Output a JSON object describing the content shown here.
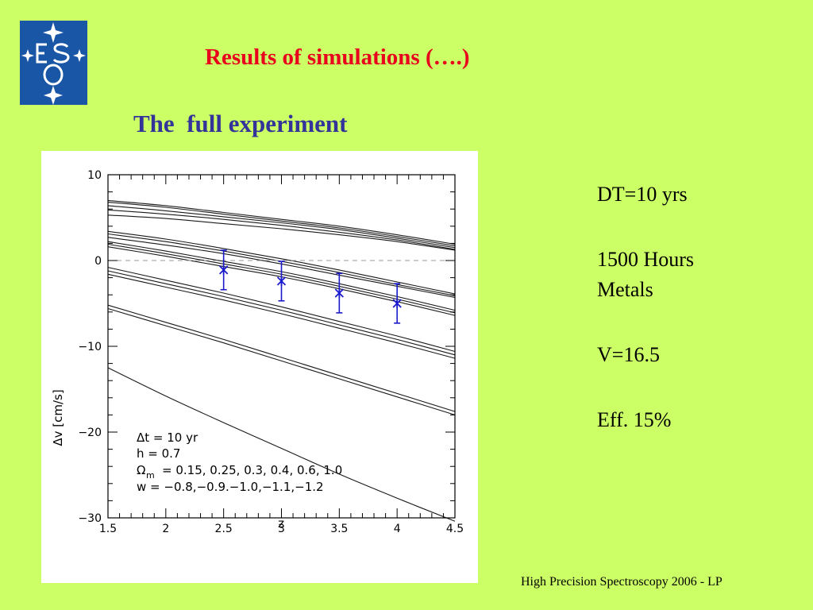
{
  "slide": {
    "title": "Results of simulations (….)",
    "subtitle": "The  full experiment",
    "footer": "High Precision Spectroscopy 2006 - LP",
    "logo_text": "ESO",
    "notes": [
      "DT=10 yrs",
      "1500 Hours",
      "Metals",
      "V=16.5",
      "Eff. 15%"
    ]
  },
  "colors": {
    "background": "#ccff66",
    "title": "#e8001c",
    "subtitle": "#33339a",
    "logo": "#1a56a6",
    "points": "#1a1acc"
  },
  "chart_data": {
    "type": "line",
    "title": "",
    "xlabel": "z",
    "ylabel": "Δv [cm/s]",
    "xlim": [
      1.5,
      4.5
    ],
    "ylim": [
      -30,
      10
    ],
    "x_ticks": [
      "1.5",
      "2",
      "2.5",
      "3",
      "3.5",
      "4",
      "4.5"
    ],
    "y_ticks": [
      "10",
      "0",
      "−10",
      "−20",
      "−30"
    ],
    "x_tick_values": [
      1.5,
      2,
      2.5,
      3,
      3.5,
      4,
      4.5
    ],
    "y_tick_values": [
      10,
      0,
      -10,
      -20,
      -30
    ],
    "reference_line": 0,
    "legend_lines": [
      "Δt = 10 yr",
      "h = 0.7",
      "Ω",
      "m",
      "= 0.15, 0.25, 0.3, 0.4, 0.6, 1.0",
      "w = −0.8,−0.9.−1.0,−1.1,−1.2"
    ],
    "x": [
      1.5,
      2.0,
      2.5,
      3.0,
      3.5,
      4.0,
      4.5
    ],
    "series": [
      {
        "values": [
          7.0,
          6.4,
          5.6,
          4.8,
          4.0,
          3.0,
          1.9
        ]
      },
      {
        "values": [
          6.8,
          6.2,
          5.4,
          4.6,
          3.8,
          2.8,
          1.7
        ]
      },
      {
        "values": [
          6.4,
          5.8,
          5.1,
          4.4,
          3.6,
          2.6,
          1.5
        ]
      },
      {
        "values": [
          5.9,
          5.4,
          4.8,
          4.1,
          3.3,
          2.4,
          1.3
        ]
      },
      {
        "values": [
          5.3,
          4.9,
          4.3,
          3.7,
          3.0,
          2.2,
          1.2
        ]
      },
      {
        "values": [
          3.4,
          2.5,
          1.4,
          0.2,
          -1.1,
          -2.5,
          -3.9
        ]
      },
      {
        "values": [
          3.1,
          2.2,
          1.1,
          -0.1,
          -1.4,
          -2.8,
          -4.1
        ]
      },
      {
        "values": [
          2.7,
          1.8,
          0.8,
          -0.4,
          -1.7,
          -3.0,
          -4.3
        ]
      },
      {
        "values": [
          2.2,
          1.1,
          -0.1,
          -1.3,
          -2.7,
          -4.2,
          -5.8
        ]
      },
      {
        "values": [
          1.9,
          0.8,
          -0.4,
          -1.6,
          -3.0,
          -4.5,
          -6.1
        ]
      },
      {
        "values": [
          1.6,
          0.5,
          -0.7,
          -1.9,
          -3.3,
          -4.8,
          -6.4
        ]
      },
      {
        "values": [
          -0.8,
          -2.3,
          -3.8,
          -5.4,
          -7.1,
          -8.8,
          -10.6
        ]
      },
      {
        "values": [
          -1.2,
          -2.7,
          -4.2,
          -5.8,
          -7.5,
          -9.2,
          -11.0
        ]
      },
      {
        "values": [
          -1.6,
          -3.1,
          -4.6,
          -6.2,
          -7.9,
          -9.6,
          -11.4
        ]
      },
      {
        "values": [
          -5.2,
          -7.2,
          -9.2,
          -11.3,
          -13.4,
          -15.5,
          -17.6
        ]
      },
      {
        "values": [
          -5.6,
          -7.6,
          -9.6,
          -11.7,
          -13.8,
          -15.9,
          -18.0
        ]
      },
      {
        "values": [
          -12.5,
          -15.8,
          -18.9,
          -21.9,
          -24.9,
          -27.7,
          -30.4
        ]
      }
    ],
    "points": [
      {
        "x": 2.5,
        "y": -1.1,
        "err": 2.3
      },
      {
        "x": 3.0,
        "y": -2.4,
        "err": 2.3
      },
      {
        "x": 3.5,
        "y": -3.8,
        "err": 2.3
      },
      {
        "x": 4.0,
        "y": -5.0,
        "err": 2.3
      }
    ],
    "grid": false,
    "legend_position": "bottom-left"
  }
}
